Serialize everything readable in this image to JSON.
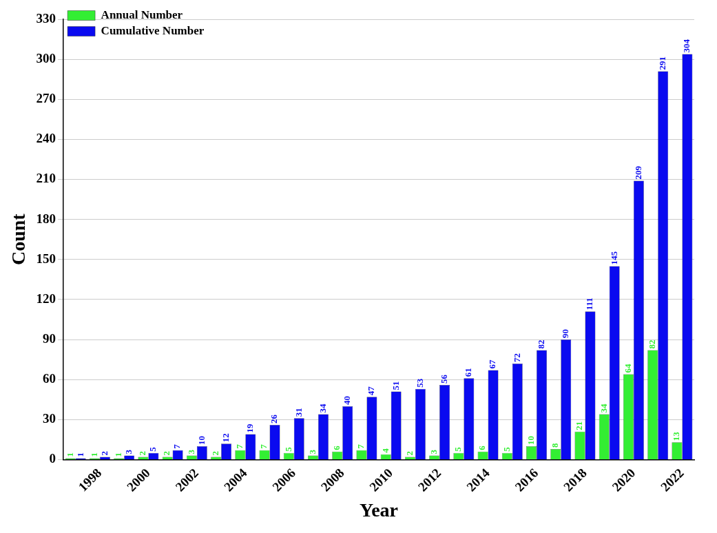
{
  "chart_data": {
    "type": "bar",
    "xlabel": "Year",
    "ylabel": "Count",
    "categories": [
      null,
      "1998",
      null,
      "2000",
      null,
      "2002",
      null,
      "2004",
      null,
      "2006",
      null,
      "2008",
      null,
      "2010",
      null,
      "2012",
      null,
      "2014",
      null,
      "2016",
      null,
      "2018",
      null,
      "2020",
      null,
      "2022"
    ],
    "series": [
      {
        "name": "Annual Number",
        "color": "#33ee33",
        "values": [
          1,
          1,
          1,
          2,
          2,
          3,
          2,
          7,
          7,
          5,
          3,
          6,
          7,
          4,
          2,
          3,
          5,
          6,
          5,
          10,
          8,
          21,
          34,
          64,
          82,
          13
        ]
      },
      {
        "name": "Cumulative Number",
        "color": "#0a0af0",
        "values": [
          1,
          2,
          3,
          5,
          7,
          10,
          12,
          19,
          26,
          31,
          34,
          40,
          47,
          51,
          53,
          56,
          61,
          67,
          72,
          82,
          90,
          111,
          145,
          209,
          291,
          304
        ]
      }
    ],
    "ylim": [
      0,
      330
    ],
    "yticks": [
      0,
      30,
      60,
      90,
      120,
      150,
      180,
      210,
      240,
      270,
      300,
      330
    ],
    "grid": "y",
    "legend": "top left",
    "data_labels": true
  }
}
